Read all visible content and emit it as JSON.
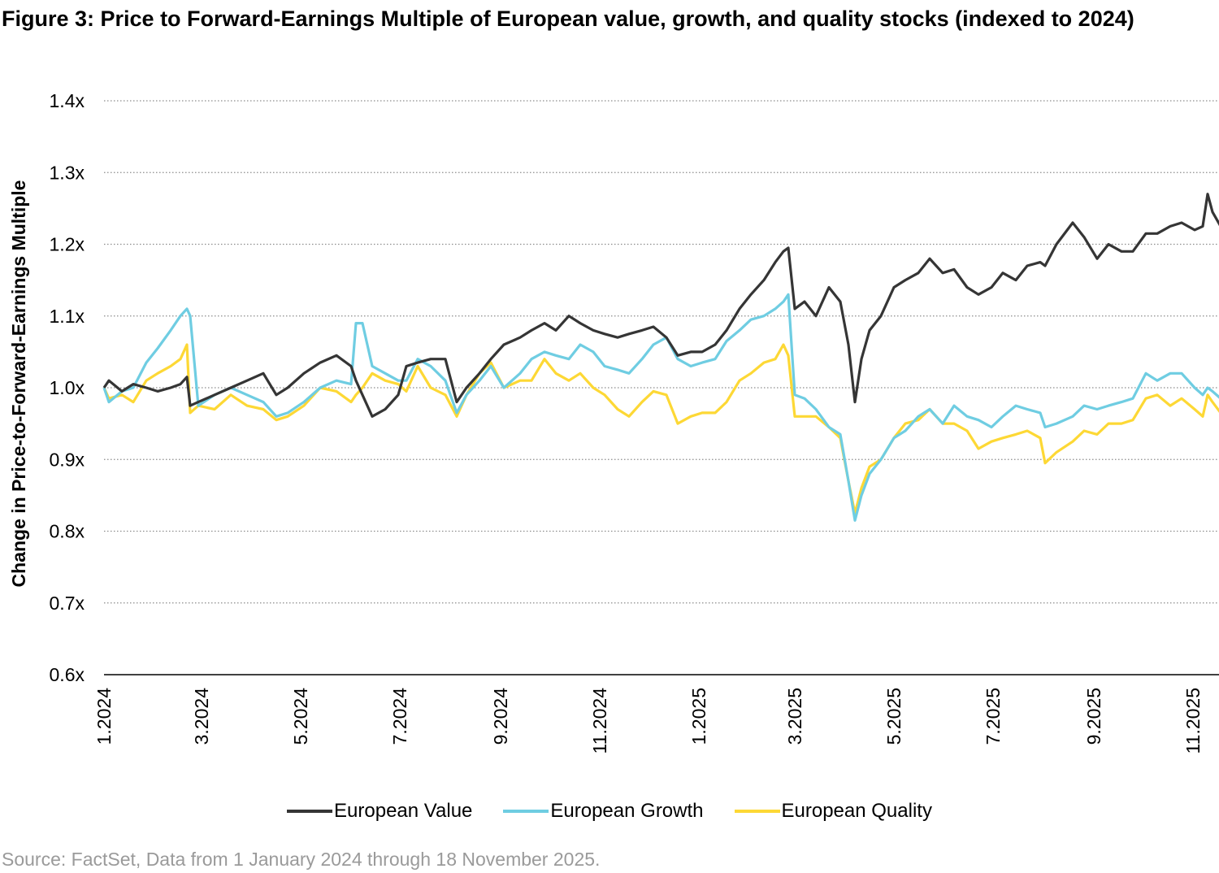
{
  "title": "Figure 3: Price to Forward-Earnings Multiple of European value, growth, and quality stocks (indexed to 2024)",
  "source": "Source: FactSet, Data from 1 January 2024 through 18 November 2025.",
  "chart_data": {
    "type": "line",
    "title": "Figure 3: Price to Forward-Earnings Multiple of European value, growth, and quality stocks (indexed to 2024)",
    "xlabel": "",
    "ylabel": "Change in Price-to-Forward-Earnings Multiple",
    "ylim": [
      0.6,
      1.4
    ],
    "yticks": [
      0.6,
      0.7,
      0.8,
      0.9,
      1.0,
      1.1,
      1.2,
      1.3,
      1.4
    ],
    "ytick_labels": [
      "0.6x",
      "0.7x",
      "0.8x",
      "0.9x",
      "1.0x",
      "1.1x",
      "1.2x",
      "1.3x",
      "1.4x"
    ],
    "xlim": [
      "2024-01-01",
      "2025-11-18"
    ],
    "xticks": [
      "2024-01-01",
      "2024-03-01",
      "2024-05-01",
      "2024-07-01",
      "2024-09-01",
      "2024-11-01",
      "2025-01-01",
      "2025-03-01",
      "2025-05-01",
      "2025-07-01",
      "2025-09-01",
      "2025-11-01"
    ],
    "xtick_labels": [
      "1.2024",
      "3.2024",
      "5.2024",
      "7.2024",
      "9.2024",
      "11.2024",
      "1.2025",
      "3.2025",
      "5.2025",
      "7.2025",
      "9.2025",
      "11.2025"
    ],
    "grid": "horizontal dotted",
    "legend_position": "bottom",
    "x": [
      "2024-01-01",
      "2024-01-04",
      "2024-01-12",
      "2024-01-19",
      "2024-01-27",
      "2024-02-03",
      "2024-02-11",
      "2024-02-17",
      "2024-02-21",
      "2024-02-23",
      "2024-02-28",
      "2024-03-09",
      "2024-03-19",
      "2024-03-29",
      "2024-04-08",
      "2024-04-16",
      "2024-04-23",
      "2024-05-03",
      "2024-05-13",
      "2024-05-23",
      "2024-06-01",
      "2024-06-04",
      "2024-06-08",
      "2024-06-14",
      "2024-06-22",
      "2024-06-30",
      "2024-07-05",
      "2024-07-12",
      "2024-07-20",
      "2024-07-29",
      "2024-08-05",
      "2024-08-11",
      "2024-08-19",
      "2024-08-26",
      "2024-09-03",
      "2024-09-13",
      "2024-09-20",
      "2024-09-28",
      "2024-10-05",
      "2024-10-13",
      "2024-10-20",
      "2024-10-28",
      "2024-11-04",
      "2024-11-12",
      "2024-11-19",
      "2024-11-27",
      "2024-12-04",
      "2024-12-12",
      "2024-12-19",
      "2024-12-27",
      "2025-01-03",
      "2025-01-11",
      "2025-01-18",
      "2025-01-26",
      "2025-02-02",
      "2025-02-10",
      "2025-02-17",
      "2025-02-22",
      "2025-02-25",
      "2025-03-01",
      "2025-03-07",
      "2025-03-14",
      "2025-03-22",
      "2025-03-29",
      "2025-04-03",
      "2025-04-07",
      "2025-04-11",
      "2025-04-16",
      "2025-04-23",
      "2025-05-01",
      "2025-05-08",
      "2025-05-16",
      "2025-05-23",
      "2025-05-31",
      "2025-06-07",
      "2025-06-15",
      "2025-06-22",
      "2025-06-30",
      "2025-07-07",
      "2025-07-15",
      "2025-07-22",
      "2025-07-30",
      "2025-08-02",
      "2025-08-09",
      "2025-08-19",
      "2025-08-26",
      "2025-09-03",
      "2025-09-10",
      "2025-09-18",
      "2025-09-25",
      "2025-10-03",
      "2025-10-10",
      "2025-10-18",
      "2025-10-25",
      "2025-11-02",
      "2025-11-07",
      "2025-11-10",
      "2025-11-13",
      "2025-11-18"
    ],
    "series": [
      {
        "name": "European Value",
        "color": "#353535",
        "values": [
          1.0,
          1.01,
          0.995,
          1.005,
          1.0,
          0.995,
          1.0,
          1.005,
          1.015,
          0.975,
          0.98,
          0.99,
          1.0,
          1.01,
          1.02,
          0.99,
          1.0,
          1.02,
          1.035,
          1.045,
          1.03,
          1.01,
          0.99,
          0.96,
          0.97,
          0.99,
          1.03,
          1.035,
          1.04,
          1.04,
          0.98,
          1.0,
          1.02,
          1.04,
          1.06,
          1.07,
          1.08,
          1.09,
          1.08,
          1.1,
          1.09,
          1.08,
          1.075,
          1.07,
          1.075,
          1.08,
          1.085,
          1.07,
          1.045,
          1.05,
          1.05,
          1.06,
          1.08,
          1.11,
          1.13,
          1.15,
          1.175,
          1.19,
          1.195,
          1.11,
          1.12,
          1.1,
          1.14,
          1.12,
          1.06,
          0.98,
          1.04,
          1.08,
          1.1,
          1.14,
          1.15,
          1.16,
          1.18,
          1.16,
          1.165,
          1.14,
          1.13,
          1.14,
          1.16,
          1.15,
          1.17,
          1.175,
          1.17,
          1.2,
          1.23,
          1.21,
          1.18,
          1.2,
          1.19,
          1.19,
          1.215,
          1.215,
          1.225,
          1.23,
          1.22,
          1.225,
          1.27,
          1.245,
          1.225
        ]
      },
      {
        "name": "European Growth",
        "color": "#6FCDE2",
        "values": [
          1.0,
          0.98,
          0.995,
          1.0,
          1.035,
          1.055,
          1.08,
          1.1,
          1.11,
          1.1,
          0.975,
          0.99,
          1.0,
          0.99,
          0.98,
          0.96,
          0.965,
          0.98,
          1.0,
          1.01,
          1.005,
          1.09,
          1.09,
          1.03,
          1.02,
          1.01,
          1.01,
          1.04,
          1.03,
          1.01,
          0.965,
          0.99,
          1.01,
          1.03,
          1.0,
          1.02,
          1.04,
          1.05,
          1.045,
          1.04,
          1.06,
          1.05,
          1.03,
          1.025,
          1.02,
          1.04,
          1.06,
          1.07,
          1.04,
          1.03,
          1.035,
          1.04,
          1.065,
          1.08,
          1.095,
          1.1,
          1.11,
          1.12,
          1.13,
          0.99,
          0.985,
          0.97,
          0.945,
          0.935,
          0.87,
          0.815,
          0.85,
          0.88,
          0.9,
          0.93,
          0.94,
          0.96,
          0.97,
          0.95,
          0.975,
          0.96,
          0.955,
          0.945,
          0.96,
          0.975,
          0.97,
          0.965,
          0.945,
          0.95,
          0.96,
          0.975,
          0.97,
          0.975,
          0.98,
          0.985,
          1.02,
          1.01,
          1.02,
          1.02,
          1.0,
          0.99,
          1.0,
          0.995,
          0.985
        ]
      },
      {
        "name": "European Quality",
        "color": "#FDD835",
        "values": [
          1.0,
          0.985,
          0.99,
          0.98,
          1.01,
          1.02,
          1.03,
          1.04,
          1.06,
          0.965,
          0.975,
          0.97,
          0.99,
          0.975,
          0.97,
          0.955,
          0.96,
          0.975,
          1.0,
          0.995,
          0.98,
          0.99,
          1.0,
          1.02,
          1.01,
          1.005,
          0.995,
          1.03,
          1.0,
          0.99,
          0.96,
          0.99,
          1.02,
          1.035,
          1.0,
          1.01,
          1.01,
          1.04,
          1.02,
          1.01,
          1.02,
          1.0,
          0.99,
          0.97,
          0.96,
          0.98,
          0.995,
          0.99,
          0.95,
          0.96,
          0.965,
          0.965,
          0.98,
          1.01,
          1.02,
          1.035,
          1.04,
          1.06,
          1.045,
          0.96,
          0.96,
          0.96,
          0.945,
          0.93,
          0.87,
          0.825,
          0.86,
          0.89,
          0.9,
          0.93,
          0.95,
          0.955,
          0.97,
          0.95,
          0.95,
          0.94,
          0.915,
          0.925,
          0.93,
          0.935,
          0.94,
          0.93,
          0.895,
          0.91,
          0.925,
          0.94,
          0.935,
          0.95,
          0.95,
          0.955,
          0.985,
          0.99,
          0.975,
          0.985,
          0.97,
          0.96,
          0.99,
          0.98,
          0.965
        ]
      }
    ]
  }
}
